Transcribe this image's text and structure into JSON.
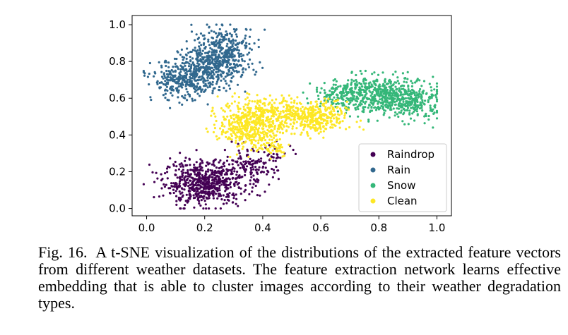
{
  "chart_data": {
    "type": "scatter",
    "title": "",
    "xlabel": "",
    "ylabel": "",
    "xlim": [
      -0.05,
      1.05
    ],
    "ylim": [
      -0.04,
      1.05
    ],
    "xticks": [
      "0.0",
      "0.2",
      "0.4",
      "0.6",
      "0.8",
      "1.0"
    ],
    "yticks": [
      "0.0",
      "0.2",
      "0.4",
      "0.6",
      "0.8",
      "1.0"
    ],
    "legend_position": "lower-right",
    "series": [
      {
        "name": "Raindrop",
        "color": "#440154",
        "clusters": [
          {
            "cx": 0.2,
            "cy": 0.14,
            "sx": 0.07,
            "sy": 0.06,
            "n": 620
          },
          {
            "cx": 0.36,
            "cy": 0.22,
            "sx": 0.045,
            "sy": 0.05,
            "n": 110
          },
          {
            "cx": 0.45,
            "cy": 0.3,
            "sx": 0.03,
            "sy": 0.03,
            "n": 25
          }
        ]
      },
      {
        "name": "Rain",
        "color": "#31688e",
        "clusters": [
          {
            "cx": 0.27,
            "cy": 0.86,
            "sx": 0.055,
            "sy": 0.065,
            "n": 330
          },
          {
            "cx": 0.12,
            "cy": 0.7,
            "sx": 0.05,
            "sy": 0.055,
            "n": 300
          },
          {
            "cx": 0.22,
            "cy": 0.76,
            "sx": 0.05,
            "sy": 0.06,
            "n": 260
          }
        ]
      },
      {
        "name": "Snow",
        "color": "#35b779",
        "clusters": [
          {
            "cx": 0.79,
            "cy": 0.62,
            "sx": 0.075,
            "sy": 0.05,
            "n": 480
          },
          {
            "cx": 0.92,
            "cy": 0.58,
            "sx": 0.045,
            "sy": 0.05,
            "n": 230
          },
          {
            "cx": 0.66,
            "cy": 0.62,
            "sx": 0.04,
            "sy": 0.03,
            "n": 100
          }
        ]
      },
      {
        "name": "Clean",
        "color": "#fde725",
        "clusters": [
          {
            "cx": 0.36,
            "cy": 0.46,
            "sx": 0.055,
            "sy": 0.065,
            "n": 520
          },
          {
            "cx": 0.58,
            "cy": 0.49,
            "sx": 0.055,
            "sy": 0.045,
            "n": 330
          },
          {
            "cx": 0.47,
            "cy": 0.53,
            "sx": 0.05,
            "sy": 0.04,
            "n": 120
          },
          {
            "cx": 0.44,
            "cy": 0.33,
            "sx": 0.025,
            "sy": 0.025,
            "n": 40
          }
        ]
      }
    ]
  },
  "caption": {
    "label": "Fig. 16.",
    "text": "A t-SNE visualization of the distributions of the extracted feature vectors from different weather datasets. The feature extraction network learns effective embedding that is able to cluster images according to their weather degradation types."
  }
}
